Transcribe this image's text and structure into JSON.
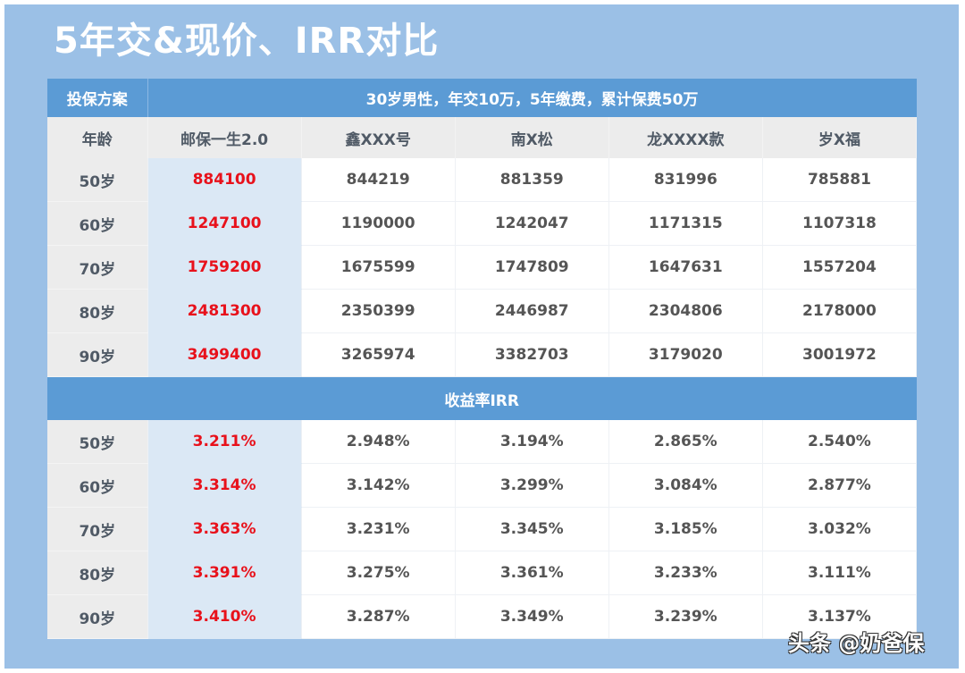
{
  "title": "5年交&现价、IRR对比",
  "header": {
    "plan_label": "投保方案",
    "plan_desc": "30岁男性，年交10万，5年缴费，累计保费50万"
  },
  "columns": {
    "age_label": "年龄",
    "products": [
      "邮保一生2.0",
      "鑫XXX号",
      "南X松",
      "龙XXXX款",
      "岁X福"
    ]
  },
  "cash_value": {
    "rows": [
      {
        "age": "50岁",
        "values": [
          "884100",
          "844219",
          "881359",
          "831996",
          "785881"
        ]
      },
      {
        "age": "60岁",
        "values": [
          "1247100",
          "1190000",
          "1242047",
          "1171315",
          "1107318"
        ]
      },
      {
        "age": "70岁",
        "values": [
          "1759200",
          "1675599",
          "1747809",
          "1647631",
          "1557204"
        ]
      },
      {
        "age": "80岁",
        "values": [
          "2481300",
          "2350399",
          "2446987",
          "2304806",
          "2178000"
        ]
      },
      {
        "age": "90岁",
        "values": [
          "3499400",
          "3265974",
          "3382703",
          "3179020",
          "3001972"
        ]
      }
    ]
  },
  "irr": {
    "section_label": "收益率IRR",
    "rows": [
      {
        "age": "50岁",
        "values": [
          "3.211%",
          "2.948%",
          "3.194%",
          "2.865%",
          "2.540%"
        ]
      },
      {
        "age": "60岁",
        "values": [
          "3.314%",
          "3.142%",
          "3.299%",
          "3.084%",
          "2.877%"
        ]
      },
      {
        "age": "70岁",
        "values": [
          "3.363%",
          "3.231%",
          "3.345%",
          "3.185%",
          "3.032%"
        ]
      },
      {
        "age": "80岁",
        "values": [
          "3.391%",
          "3.275%",
          "3.361%",
          "3.233%",
          "3.111%"
        ]
      },
      {
        "age": "90岁",
        "values": [
          "3.410%",
          "3.287%",
          "3.349%",
          "3.239%",
          "3.137%"
        ]
      }
    ]
  },
  "colors": {
    "frame_bg": "#9bc0e6",
    "header_blue": "#5b9bd5",
    "highlight_col_bg": "#dbe8f5",
    "highlight_text": "#e8111b",
    "age_col_bg": "#ececec"
  },
  "watermark": "头条 @奶爸保"
}
